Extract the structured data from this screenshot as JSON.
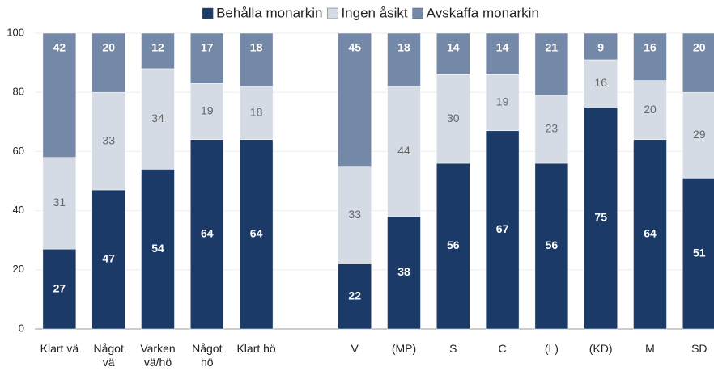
{
  "chart_data": {
    "type": "stacked_bar",
    "categories": [
      "Klart vä",
      "Något\nvä",
      "Varken\nvä/hö",
      "Något\nhö",
      "Klart hö",
      null,
      "V",
      "(MP)",
      "S",
      "C",
      "(L)",
      "(KD)",
      "M",
      "SD"
    ],
    "series": [
      {
        "name": "Behålla monarkin",
        "color": "#1b3a68",
        "values": [
          27,
          47,
          54,
          64,
          64,
          null,
          22,
          38,
          56,
          67,
          56,
          75,
          64,
          51
        ]
      },
      {
        "name": "Ingen åsikt",
        "color": "#d4dbe5",
        "values": [
          31,
          33,
          34,
          19,
          18,
          null,
          33,
          44,
          30,
          19,
          23,
          16,
          20,
          29
        ]
      },
      {
        "name": "Avskaffa monarkin",
        "color": "#7489a8",
        "values": [
          42,
          20,
          12,
          17,
          18,
          null,
          45,
          18,
          14,
          14,
          21,
          9,
          16,
          20
        ]
      }
    ],
    "ylim": [
      0,
      100
    ],
    "yticks": [
      0,
      20,
      40,
      60,
      80,
      100
    ],
    "grid": true,
    "legend": "top"
  }
}
